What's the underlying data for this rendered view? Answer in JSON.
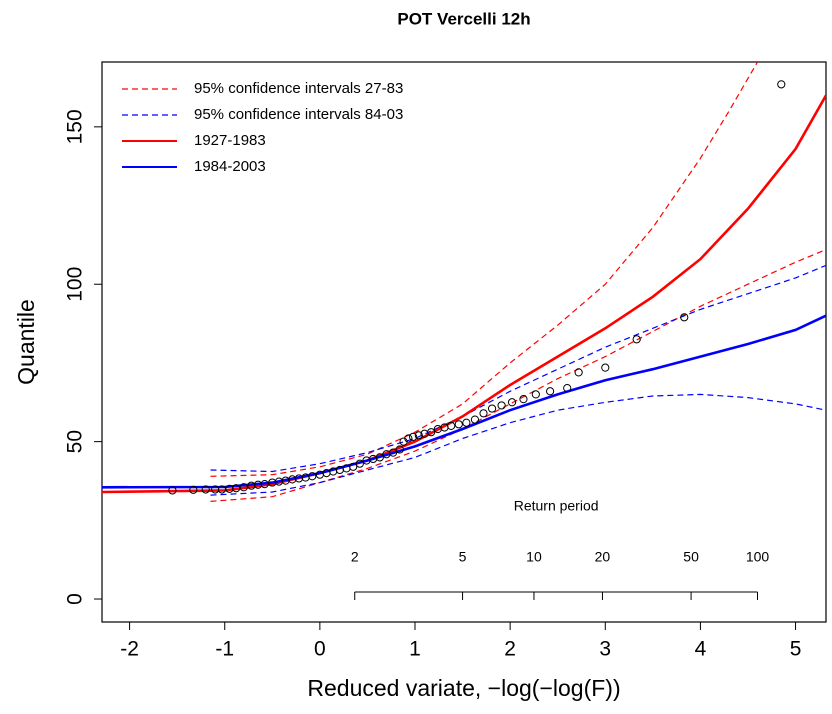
{
  "chart_data": {
    "type": "line",
    "title": "POT Vercelli 12h",
    "x_label": "Reduced variate, −log(−log(F))",
    "y_label": "Quantile",
    "xlim": [
      -2.29,
      5.32
    ],
    "ylim": [
      -7.3,
      170.6
    ],
    "xticks": [
      -2,
      -1,
      0,
      1,
      2,
      3,
      4,
      5
    ],
    "yticks": [
      0,
      50,
      100,
      150
    ],
    "grid": false,
    "legend": "top-left",
    "series": [
      {
        "name": "95% confidence intervals 27-83",
        "color": "#ff0000",
        "style": "dashed",
        "lines": [
          {
            "x": [
              -1.15,
              -0.5,
              0,
              0.5,
              1,
              1.5,
              2,
              2.5,
              3,
              3.5,
              4,
              4.3,
              4.6
            ],
            "values": [
              39,
              39.5,
              42,
              46,
              53,
              62,
              75,
              87,
              100,
              118,
              140,
              155,
              170.6
            ]
          },
          {
            "x": [
              -1.15,
              -0.5,
              0,
              0.5,
              1,
              1.5,
              2,
              2.5,
              3,
              3.5,
              4,
              4.5,
              5,
              5.32
            ],
            "values": [
              31,
              32.5,
              37,
              41.5,
              47,
              54,
              62,
              70,
              77,
              85,
              93,
              100,
              107,
              111
            ]
          }
        ]
      },
      {
        "name": "95% confidence intervals 84-03",
        "color": "#0000ff",
        "style": "dashed",
        "lines": [
          {
            "x": [
              -1.15,
              -0.5,
              0,
              0.5,
              1,
              1.5,
              2,
              2.5,
              3,
              3.5,
              4,
              4.5,
              5,
              5.32
            ],
            "values": [
              41,
              40.5,
              43,
              46.5,
              51,
              58,
              66,
              73,
              80,
              86,
              92,
              97,
              102,
              106
            ]
          },
          {
            "x": [
              -1.15,
              -0.5,
              0,
              0.5,
              1,
              1.5,
              2,
              2.5,
              3,
              3.5,
              4,
              4.5,
              5,
              5.32
            ],
            "values": [
              33,
              34,
              37,
              41,
              45,
              51,
              56,
              60,
              62.5,
              64.5,
              65,
              64,
              62,
              60
            ]
          }
        ]
      },
      {
        "name": "1927-1983",
        "color": "#ff0000",
        "style": "solid",
        "lines": [
          {
            "x": [
              -2.29,
              -1,
              -0.5,
              0,
              0.5,
              1,
              1.5,
              2,
              2.5,
              3,
              3.5,
              4,
              4.5,
              5,
              5.32
            ],
            "values": [
              34,
              34.5,
              36.5,
              40,
              44,
              50,
              58,
              68,
              77,
              86,
              96,
              108,
              124,
              143,
              160
            ]
          }
        ]
      },
      {
        "name": "1984-2003",
        "color": "#0000ff",
        "style": "solid",
        "lines": [
          {
            "x": [
              -2.29,
              -1,
              -0.5,
              0,
              0.5,
              1,
              1.5,
              2,
              2.5,
              3,
              3.5,
              4,
              4.5,
              5,
              5.32
            ],
            "values": [
              35.5,
              35.6,
              37,
              40,
              44,
              48.5,
              54,
              60,
              65,
              69.5,
              73,
              77,
              81,
              85.5,
              90
            ]
          }
        ]
      }
    ],
    "points": {
      "color": "#000000",
      "x": [
        -1.55,
        -1.33,
        -1.2,
        -1.1,
        -1.03,
        -0.95,
        -0.88,
        -0.8,
        -0.72,
        -0.65,
        -0.58,
        -0.5,
        -0.43,
        -0.36,
        -0.29,
        -0.22,
        -0.15,
        -0.08,
        0,
        0.07,
        0.14,
        0.21,
        0.28,
        0.35,
        0.42,
        0.49,
        0.56,
        0.63,
        0.7,
        0.77,
        0.84,
        0.88,
        0.93,
        0.98,
        1.04,
        1.1,
        1.17,
        1.24,
        1.31,
        1.38,
        1.46,
        1.54,
        1.63,
        1.72,
        1.81,
        1.91,
        2.02,
        2.14,
        2.27,
        2.42,
        2.6,
        2.72,
        3.0,
        3.33,
        3.83,
        4.85
      ],
      "y": [
        34.5,
        34.7,
        34.8,
        34.8,
        34.8,
        35,
        35.2,
        35.5,
        36,
        36.3,
        36.5,
        37,
        37.3,
        37.6,
        38,
        38.3,
        38.6,
        39,
        39.5,
        40,
        40.5,
        41,
        41.5,
        42,
        43,
        44,
        44.5,
        45,
        46,
        46.5,
        47.5,
        50,
        51,
        51.5,
        52,
        52.5,
        53,
        54,
        54.5,
        55,
        55.5,
        56,
        57,
        59,
        60.5,
        61.5,
        62.5,
        63.5,
        65,
        66,
        67,
        72,
        73.5,
        82.5,
        89.5,
        163.5
      ]
    },
    "return_period": {
      "title": "Return period",
      "ticks": [
        {
          "value": 0.3665,
          "label": "2"
        },
        {
          "value": 1.4999,
          "label": "5"
        },
        {
          "value": 2.2504,
          "label": "10"
        },
        {
          "value": 2.9702,
          "label": "20"
        },
        {
          "value": 3.9019,
          "label": "50"
        },
        {
          "value": 4.6001,
          "label": "100"
        }
      ]
    }
  }
}
